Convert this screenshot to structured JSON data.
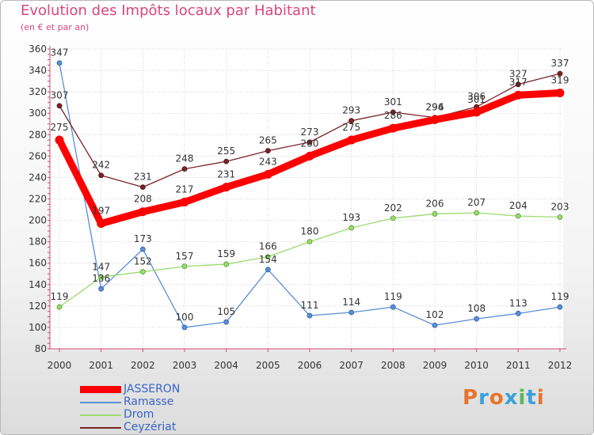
{
  "header": {
    "title": "Evolution des Impôts locaux par Habitant",
    "subtitle": "(en € et par an)"
  },
  "brand": {
    "text": "Proxiti",
    "colors": [
      "#e8732a",
      "#3aa0d8",
      "#e8732a",
      "#3aa0d8",
      "#5cb85c",
      "#3aa0d8",
      "#e8732a"
    ]
  },
  "chart_data": {
    "type": "line",
    "title": "Evolution des Impôts locaux par Habitant",
    "subtitle": "(en € et par an)",
    "xlabel": "",
    "ylabel": "",
    "categories": [
      "2000",
      "2001",
      "2002",
      "2003",
      "2004",
      "2005",
      "2006",
      "2007",
      "2008",
      "2009",
      "2010",
      "2011",
      "2012"
    ],
    "ylim": [
      80,
      360
    ],
    "yticks": [
      "80",
      "100",
      "120",
      "140",
      "160",
      "180",
      "200",
      "220",
      "240",
      "260",
      "280",
      "300",
      "320",
      "340",
      "360"
    ],
    "grid": true,
    "legend_position": "bottom-left",
    "series": [
      {
        "name": "JASSERON",
        "color": "#ff0000",
        "values": [
          275,
          197,
          208,
          217,
          231,
          243,
          260,
          275,
          286,
          294,
          301,
          317,
          319
        ]
      },
      {
        "name": "Ramasse",
        "color": "#5a8ed6",
        "values": [
          347,
          136,
          173,
          100,
          105,
          154,
          111,
          114,
          119,
          102,
          108,
          113,
          119
        ]
      },
      {
        "name": "Drom",
        "color": "#9bdb6e",
        "values": [
          119,
          147,
          152,
          157,
          159,
          166,
          180,
          193,
          202,
          206,
          207,
          204,
          203
        ]
      },
      {
        "name": "Ceyzériat",
        "color": "#7a2328",
        "values": [
          307,
          242,
          231,
          248,
          255,
          265,
          273,
          293,
          301,
          296,
          306,
          327,
          337
        ]
      }
    ]
  }
}
